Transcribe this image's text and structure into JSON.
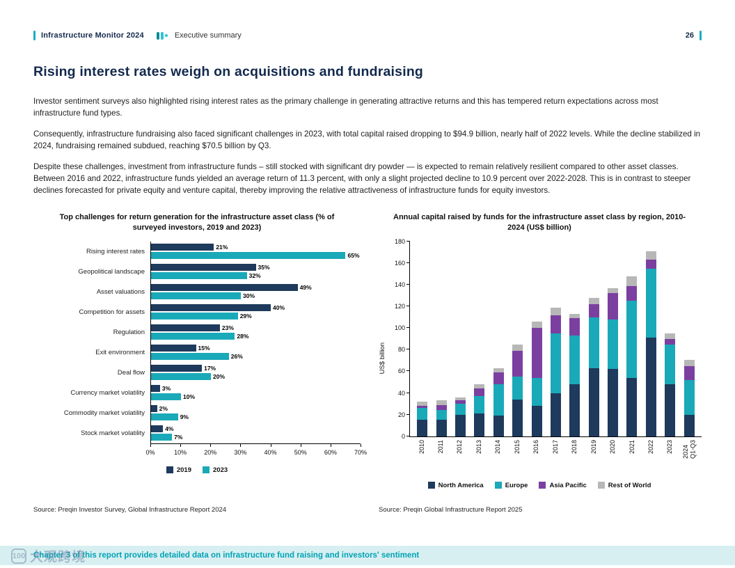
{
  "header": {
    "brand": "Infrastructure Monitor 2024",
    "section": "Executive summary",
    "page": "26"
  },
  "title": "Rising interest rates weigh on acquisitions and fundraising",
  "paragraphs": {
    "p1": "Investor sentiment surveys also highlighted rising interest rates as the primary challenge in generating attractive returns and this has tempered return expectations across most infrastructure fund types.",
    "p2": "Consequently, infrastructure fundraising also faced significant challenges in 2023, with total capital raised dropping to $94.9 billion, nearly half of 2022 levels. While the decline stabilized in 2024, fundraising remained subdued, reaching $70.5 billion by Q3.",
    "p3": "Despite these challenges, investment from infrastructure funds – still stocked with significant dry powder — is expected to remain relatively resilient compared to other asset classes. Between 2016 and 2022, infrastructure funds yielded an average return of 11.3 percent, with only a slight projected decline to 10.9 percent over 2022-2028. This is in contrast to steeper declines forecasted for private equity and venture capital, thereby improving the relative attractiveness of infrastructure funds for equity investors."
  },
  "colors": {
    "navy": "#1E3A5C",
    "teal": "#1AA9B8",
    "purple": "#7B3FA0",
    "gray": "#B7B7B7",
    "accent": "#17AEBF",
    "strip_bg": "#D8EFF2",
    "strip_text": "#00A3B4"
  },
  "chart_data": [
    {
      "type": "bar",
      "orientation": "horizontal",
      "title": "Top challenges for return generation for the infrastructure asset class (% of surveyed investors, 2019 and 2023)",
      "categories": [
        "Rising interest rates",
        "Geopolitical landscape",
        "Asset valuations",
        "Competition for assets",
        "Regulation",
        "Exit environment",
        "Deal flow",
        "Currency market volatility",
        "Commodity market volatility",
        "Stock market volatility"
      ],
      "series": [
        {
          "name": "2019",
          "color": "#1E3A5C",
          "values": [
            21,
            35,
            49,
            40,
            23,
            15,
            17,
            3,
            2,
            4
          ]
        },
        {
          "name": "2023",
          "color": "#1AA9B8",
          "values": [
            65,
            32,
            30,
            29,
            28,
            26,
            20,
            10,
            9,
            7
          ]
        }
      ],
      "xlim": [
        0,
        70
      ],
      "xticks": [
        0,
        10,
        20,
        30,
        40,
        50,
        60,
        70
      ],
      "value_suffix": "%",
      "grid": false,
      "legend_position": "bottom"
    },
    {
      "type": "bar",
      "stacked": true,
      "title": "Annual capital raised by funds for the infrastructure asset class by region, 2010-2024 (US$ billion)",
      "categories": [
        "2010",
        "2011",
        "2012",
        "2013",
        "2014",
        "2015",
        "2016",
        "2017",
        "2018",
        "2019",
        "2020",
        "2021",
        "2022",
        "2023",
        "2024\nQ1-Q3"
      ],
      "series": [
        {
          "name": "North America",
          "color": "#1E3A5C",
          "values": [
            15,
            15,
            20,
            21,
            19,
            34,
            28,
            40,
            48,
            63,
            62,
            54,
            91,
            48,
            20
          ]
        },
        {
          "name": "Europe",
          "color": "#1AA9B8",
          "values": [
            11,
            9,
            10,
            16,
            29,
            21,
            26,
            55,
            45,
            47,
            46,
            71,
            64,
            37,
            32
          ]
        },
        {
          "name": "Asia Pacific",
          "color": "#7B3FA0",
          "values": [
            2,
            5,
            3,
            7,
            11,
            24,
            46,
            17,
            16,
            12,
            24,
            14,
            8,
            5,
            13
          ]
        },
        {
          "name": "Rest of World",
          "color": "#B7B7B7",
          "values": [
            4,
            4,
            3,
            4,
            4,
            6,
            6,
            7,
            4,
            6,
            5,
            9,
            8,
            4.9,
            5.5
          ]
        }
      ],
      "ylabel": "US$ billion",
      "ylim": [
        0,
        180
      ],
      "yticks": [
        0,
        20,
        40,
        60,
        80,
        100,
        120,
        140,
        160,
        180
      ],
      "grid": false,
      "legend_position": "bottom"
    }
  ],
  "sources": {
    "left": "Source: Preqin Investor Survey, Global Infrastructure Report 2024",
    "right": "Source: Preqin Global Infrastructure Report 2025"
  },
  "footer": {
    "note": "Chapter 3 of this report provides detailed data on infrastructure fund raising and investors' sentiment"
  },
  "watermark": {
    "logo": "100",
    "text": "大观跨境"
  }
}
